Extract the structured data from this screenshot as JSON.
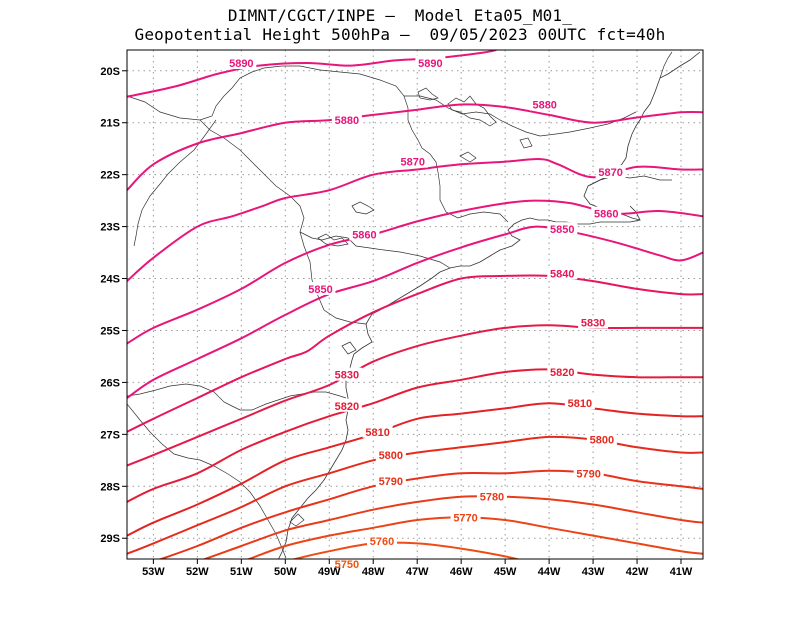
{
  "title": {
    "line1": "DIMNT/CGCT/INPE –  Model Eta05_M01_",
    "line2": "Geopotential Height 500hPa –  09/05/2023 00UTC fct=40h"
  },
  "axes": {
    "lon_range": [
      -53.6,
      -40.5
    ],
    "lat_range": [
      -29.4,
      -19.6
    ],
    "lat_ticks": [
      {
        "value": -20,
        "label": "20S"
      },
      {
        "value": -21,
        "label": "21S"
      },
      {
        "value": -22,
        "label": "22S"
      },
      {
        "value": -23,
        "label": "23S"
      },
      {
        "value": -24,
        "label": "24S"
      },
      {
        "value": -25,
        "label": "25S"
      },
      {
        "value": -26,
        "label": "26S"
      },
      {
        "value": -27,
        "label": "27S"
      },
      {
        "value": -28,
        "label": "28S"
      },
      {
        "value": -29,
        "label": "29S"
      }
    ],
    "lon_ticks": [
      {
        "value": -53,
        "label": "53W"
      },
      {
        "value": -52,
        "label": "52W"
      },
      {
        "value": -51,
        "label": "51W"
      },
      {
        "value": -50,
        "label": "50W"
      },
      {
        "value": -49,
        "label": "49W"
      },
      {
        "value": -48,
        "label": "48W"
      },
      {
        "value": -47,
        "label": "47W"
      },
      {
        "value": -46,
        "label": "46W"
      },
      {
        "value": -45,
        "label": "45W"
      },
      {
        "value": -44,
        "label": "44W"
      },
      {
        "value": -43,
        "label": "43W"
      },
      {
        "value": -42,
        "label": "42W"
      },
      {
        "value": -41,
        "label": "41W"
      }
    ],
    "grid": true
  },
  "contours": [
    {
      "label": "5890",
      "color": "#e8157a",
      "points": [
        [
          -53.6,
          -20.5
        ],
        [
          -52.5,
          -20.3
        ],
        [
          -51.5,
          -20.05
        ],
        [
          -50.6,
          -19.9
        ],
        [
          -49.5,
          -19.85
        ],
        [
          -48.5,
          -19.9
        ],
        [
          -47.5,
          -19.8
        ],
        [
          -46.5,
          -19.75
        ],
        [
          -45.5,
          -19.65
        ],
        [
          -45.2,
          -19.6
        ]
      ],
      "labels": [
        {
          "text": "5890",
          "lon": -51.0,
          "lat": -19.85
        },
        {
          "text": "5890",
          "lon": -46.7,
          "lat": -19.85
        }
      ]
    },
    {
      "label": "5880",
      "color": "#e8157a",
      "points": [
        [
          -53.6,
          -22.3
        ],
        [
          -53.0,
          -21.8
        ],
        [
          -52.0,
          -21.4
        ],
        [
          -51.0,
          -21.2
        ],
        [
          -50.0,
          -21.0
        ],
        [
          -49.0,
          -20.95
        ],
        [
          -48.0,
          -20.85
        ],
        [
          -47.0,
          -20.75
        ],
        [
          -46.0,
          -20.65
        ],
        [
          -45.0,
          -20.7
        ],
        [
          -44.0,
          -20.85
        ],
        [
          -43.0,
          -21.0
        ],
        [
          -42.0,
          -20.9
        ],
        [
          -41.0,
          -20.8
        ],
        [
          -40.5,
          -20.8
        ]
      ],
      "labels": [
        {
          "text": "5880",
          "lon": -48.6,
          "lat": -20.95
        },
        {
          "text": "5880",
          "lon": -44.1,
          "lat": -20.65
        }
      ]
    },
    {
      "label": "5870",
      "color": "#e8157a",
      "points": [
        [
          -53.6,
          -24.05
        ],
        [
          -53.0,
          -23.6
        ],
        [
          -52.0,
          -23.0
        ],
        [
          -51.2,
          -22.8
        ],
        [
          -50.5,
          -22.6
        ],
        [
          -50.0,
          -22.45
        ],
        [
          -49.0,
          -22.3
        ],
        [
          -48.0,
          -22.0
        ],
        [
          -47.0,
          -21.9
        ],
        [
          -46.0,
          -21.8
        ],
        [
          -45.0,
          -21.75
        ],
        [
          -44.2,
          -21.7
        ],
        [
          -43.8,
          -21.8
        ],
        [
          -43.0,
          -22.05
        ],
        [
          -42.0,
          -21.85
        ],
        [
          -41.0,
          -21.9
        ],
        [
          -40.5,
          -21.9
        ]
      ],
      "labels": [
        {
          "text": "5870",
          "lon": -47.1,
          "lat": -21.75
        },
        {
          "text": "5870",
          "lon": -42.6,
          "lat": -21.95
        }
      ]
    },
    {
      "label": "5860",
      "color": "#e8157a",
      "points": [
        [
          -53.6,
          -25.25
        ],
        [
          -53.0,
          -24.95
        ],
        [
          -52.0,
          -24.6
        ],
        [
          -51.0,
          -24.2
        ],
        [
          -50.0,
          -23.7
        ],
        [
          -49.0,
          -23.35
        ],
        [
          -48.0,
          -23.15
        ],
        [
          -47.0,
          -22.9
        ],
        [
          -46.0,
          -22.7
        ],
        [
          -45.0,
          -22.55
        ],
        [
          -44.3,
          -22.5
        ],
        [
          -43.5,
          -22.55
        ],
        [
          -42.5,
          -22.75
        ],
        [
          -41.5,
          -22.7
        ],
        [
          -40.5,
          -22.8
        ]
      ],
      "labels": [
        {
          "text": "5860",
          "lon": -48.2,
          "lat": -23.15
        },
        {
          "text": "5860",
          "lon": -42.7,
          "lat": -22.75
        }
      ]
    },
    {
      "label": "5850",
      "color": "#e8157a",
      "points": [
        [
          -53.6,
          -26.3
        ],
        [
          -53.0,
          -25.95
        ],
        [
          -52.0,
          -25.55
        ],
        [
          -51.0,
          -25.15
        ],
        [
          -50.0,
          -24.7
        ],
        [
          -49.0,
          -24.3
        ],
        [
          -48.0,
          -24.05
        ],
        [
          -47.0,
          -23.7
        ],
        [
          -46.0,
          -23.4
        ],
        [
          -45.0,
          -23.15
        ],
        [
          -44.3,
          -23.0
        ],
        [
          -43.5,
          -23.1
        ],
        [
          -42.5,
          -23.3
        ],
        [
          -41.5,
          -23.55
        ],
        [
          -41.0,
          -23.65
        ],
        [
          -40.5,
          -23.5
        ]
      ],
      "labels": [
        {
          "text": "5850",
          "lon": -49.2,
          "lat": -24.2
        },
        {
          "text": "5850",
          "lon": -43.7,
          "lat": -23.05
        }
      ]
    },
    {
      "label": "5840",
      "color": "#e6155e",
      "points": [
        [
          -53.6,
          -26.95
        ],
        [
          -53.0,
          -26.7
        ],
        [
          -52.0,
          -26.3
        ],
        [
          -51.0,
          -25.9
        ],
        [
          -50.0,
          -25.55
        ],
        [
          -49.5,
          -25.4
        ],
        [
          -49.0,
          -25.1
        ],
        [
          -48.0,
          -24.65
        ],
        [
          -47.0,
          -24.3
        ],
        [
          -46.0,
          -24.0
        ],
        [
          -45.0,
          -23.95
        ],
        [
          -44.0,
          -23.95
        ],
        [
          -43.0,
          -24.05
        ],
        [
          -42.0,
          -24.2
        ],
        [
          -41.0,
          -24.3
        ],
        [
          -40.5,
          -24.3
        ]
      ],
      "labels": [
        {
          "text": "5840",
          "lon": -43.7,
          "lat": -23.9
        }
      ]
    },
    {
      "label": "5830",
      "color": "#e41a4a",
      "points": [
        [
          -53.6,
          -27.6
        ],
        [
          -53.0,
          -27.4
        ],
        [
          -52.0,
          -27.05
        ],
        [
          -51.0,
          -26.7
        ],
        [
          -50.0,
          -26.35
        ],
        [
          -49.0,
          -26.05
        ],
        [
          -48.0,
          -25.6
        ],
        [
          -47.0,
          -25.3
        ],
        [
          -46.0,
          -25.1
        ],
        [
          -45.0,
          -24.95
        ],
        [
          -44.0,
          -24.9
        ],
        [
          -43.0,
          -24.95
        ],
        [
          -42.0,
          -24.95
        ],
        [
          -41.0,
          -24.95
        ],
        [
          -40.5,
          -24.95
        ]
      ],
      "labels": [
        {
          "text": "5830",
          "lon": -48.6,
          "lat": -25.85
        },
        {
          "text": "5830",
          "lon": -43.0,
          "lat": -24.85
        }
      ]
    },
    {
      "label": "5820",
      "color": "#e41c38",
      "points": [
        [
          -53.6,
          -28.3
        ],
        [
          -53.0,
          -28.05
        ],
        [
          -52.0,
          -27.75
        ],
        [
          -51.0,
          -27.3
        ],
        [
          -50.0,
          -26.95
        ],
        [
          -49.0,
          -26.65
        ],
        [
          -48.0,
          -26.4
        ],
        [
          -47.0,
          -26.1
        ],
        [
          -46.0,
          -25.95
        ],
        [
          -45.0,
          -25.8
        ],
        [
          -44.0,
          -25.75
        ],
        [
          -43.0,
          -25.85
        ],
        [
          -42.0,
          -25.9
        ],
        [
          -41.0,
          -25.9
        ],
        [
          -40.5,
          -25.9
        ]
      ],
      "labels": [
        {
          "text": "5820",
          "lon": -48.6,
          "lat": -26.45
        },
        {
          "text": "5820",
          "lon": -43.7,
          "lat": -25.8
        }
      ]
    },
    {
      "label": "5810",
      "color": "#e42224",
      "points": [
        [
          -53.6,
          -28.95
        ],
        [
          -53.0,
          -28.7
        ],
        [
          -52.0,
          -28.35
        ],
        [
          -51.0,
          -27.95
        ],
        [
          -50.0,
          -27.5
        ],
        [
          -49.0,
          -27.25
        ],
        [
          -48.0,
          -27.0
        ],
        [
          -47.0,
          -26.7
        ],
        [
          -46.0,
          -26.6
        ],
        [
          -45.0,
          -26.5
        ],
        [
          -44.0,
          -26.4
        ],
        [
          -43.0,
          -26.5
        ],
        [
          -42.0,
          -26.6
        ],
        [
          -41.0,
          -26.65
        ],
        [
          -40.5,
          -26.65
        ]
      ],
      "labels": [
        {
          "text": "5810",
          "lon": -47.9,
          "lat": -26.95
        },
        {
          "text": "5810",
          "lon": -43.3,
          "lat": -26.4
        }
      ]
    },
    {
      "label": "5800",
      "color": "#e62b1c",
      "points": [
        [
          -53.6,
          -29.3
        ],
        [
          -53.0,
          -29.1
        ],
        [
          -52.0,
          -28.75
        ],
        [
          -51.0,
          -28.4
        ],
        [
          -50.0,
          -28.0
        ],
        [
          -49.0,
          -27.75
        ],
        [
          -48.0,
          -27.5
        ],
        [
          -47.0,
          -27.35
        ],
        [
          -46.0,
          -27.25
        ],
        [
          -45.0,
          -27.15
        ],
        [
          -44.0,
          -27.05
        ],
        [
          -43.0,
          -27.1
        ],
        [
          -42.0,
          -27.25
        ],
        [
          -41.0,
          -27.35
        ],
        [
          -40.5,
          -27.35
        ]
      ],
      "labels": [
        {
          "text": "5800",
          "lon": -47.6,
          "lat": -27.4
        },
        {
          "text": "5800",
          "lon": -42.8,
          "lat": -27.1
        }
      ]
    },
    {
      "label": "5790",
      "color": "#e8321a",
      "points": [
        [
          -53.6,
          -29.6
        ],
        [
          -53.0,
          -29.45
        ],
        [
          -52.0,
          -29.15
        ],
        [
          -51.0,
          -28.8
        ],
        [
          -50.0,
          -28.5
        ],
        [
          -49.0,
          -28.25
        ],
        [
          -48.0,
          -28.0
        ],
        [
          -47.0,
          -27.85
        ],
        [
          -46.0,
          -27.75
        ],
        [
          -45.0,
          -27.75
        ],
        [
          -44.0,
          -27.7
        ],
        [
          -43.0,
          -27.75
        ],
        [
          -42.0,
          -27.9
        ],
        [
          -41.0,
          -28.0
        ],
        [
          -40.5,
          -28.05
        ]
      ],
      "labels": [
        {
          "text": "5790",
          "lon": -47.6,
          "lat": -27.9
        },
        {
          "text": "5790",
          "lon": -43.1,
          "lat": -27.75
        }
      ]
    },
    {
      "label": "5780",
      "color": "#ea3b18",
      "points": [
        [
          -52.6,
          -29.6
        ],
        [
          -52.0,
          -29.45
        ],
        [
          -51.0,
          -29.15
        ],
        [
          -50.0,
          -28.85
        ],
        [
          -49.0,
          -28.65
        ],
        [
          -48.0,
          -28.45
        ],
        [
          -47.0,
          -28.3
        ],
        [
          -46.0,
          -28.2
        ],
        [
          -45.0,
          -28.2
        ],
        [
          -44.0,
          -28.25
        ],
        [
          -43.0,
          -28.35
        ],
        [
          -42.0,
          -28.5
        ],
        [
          -41.0,
          -28.65
        ],
        [
          -40.5,
          -28.7
        ]
      ],
      "labels": [
        {
          "text": "5780",
          "lon": -45.3,
          "lat": -28.2
        }
      ]
    },
    {
      "label": "5770",
      "color": "#ec4416",
      "points": [
        [
          -51.7,
          -29.6
        ],
        [
          -51.0,
          -29.45
        ],
        [
          -50.0,
          -29.15
        ],
        [
          -49.0,
          -28.95
        ],
        [
          -48.0,
          -28.8
        ],
        [
          -47.0,
          -28.65
        ],
        [
          -46.0,
          -28.6
        ],
        [
          -45.0,
          -28.65
        ],
        [
          -44.0,
          -28.8
        ],
        [
          -43.0,
          -28.95
        ],
        [
          -42.0,
          -29.1
        ],
        [
          -41.0,
          -29.25
        ],
        [
          -40.5,
          -29.3
        ]
      ],
      "labels": [
        {
          "text": "5770",
          "lon": -45.9,
          "lat": -28.6
        }
      ]
    },
    {
      "label": "5760",
      "color": "#ee4c14",
      "points": [
        [
          -50.5,
          -29.6
        ],
        [
          -50.0,
          -29.45
        ],
        [
          -49.0,
          -29.25
        ],
        [
          -48.0,
          -29.1
        ],
        [
          -47.0,
          -29.1
        ],
        [
          -46.0,
          -29.2
        ],
        [
          -45.0,
          -29.35
        ],
        [
          -44.3,
          -29.5
        ],
        [
          -44.0,
          -29.6
        ]
      ],
      "labels": [
        {
          "text": "5760",
          "lon": -47.8,
          "lat": -29.05
        }
      ]
    },
    {
      "label": "5750",
      "color": "#f05412",
      "points": [
        [
          -49.2,
          -29.6
        ],
        [
          -49.0,
          -29.52
        ],
        [
          -48.0,
          -29.45
        ],
        [
          -47.0,
          -29.55
        ],
        [
          -46.6,
          -29.6
        ]
      ],
      "labels": [
        {
          "text": "5750",
          "lon": -48.6,
          "lat": -29.5
        }
      ]
    }
  ]
}
